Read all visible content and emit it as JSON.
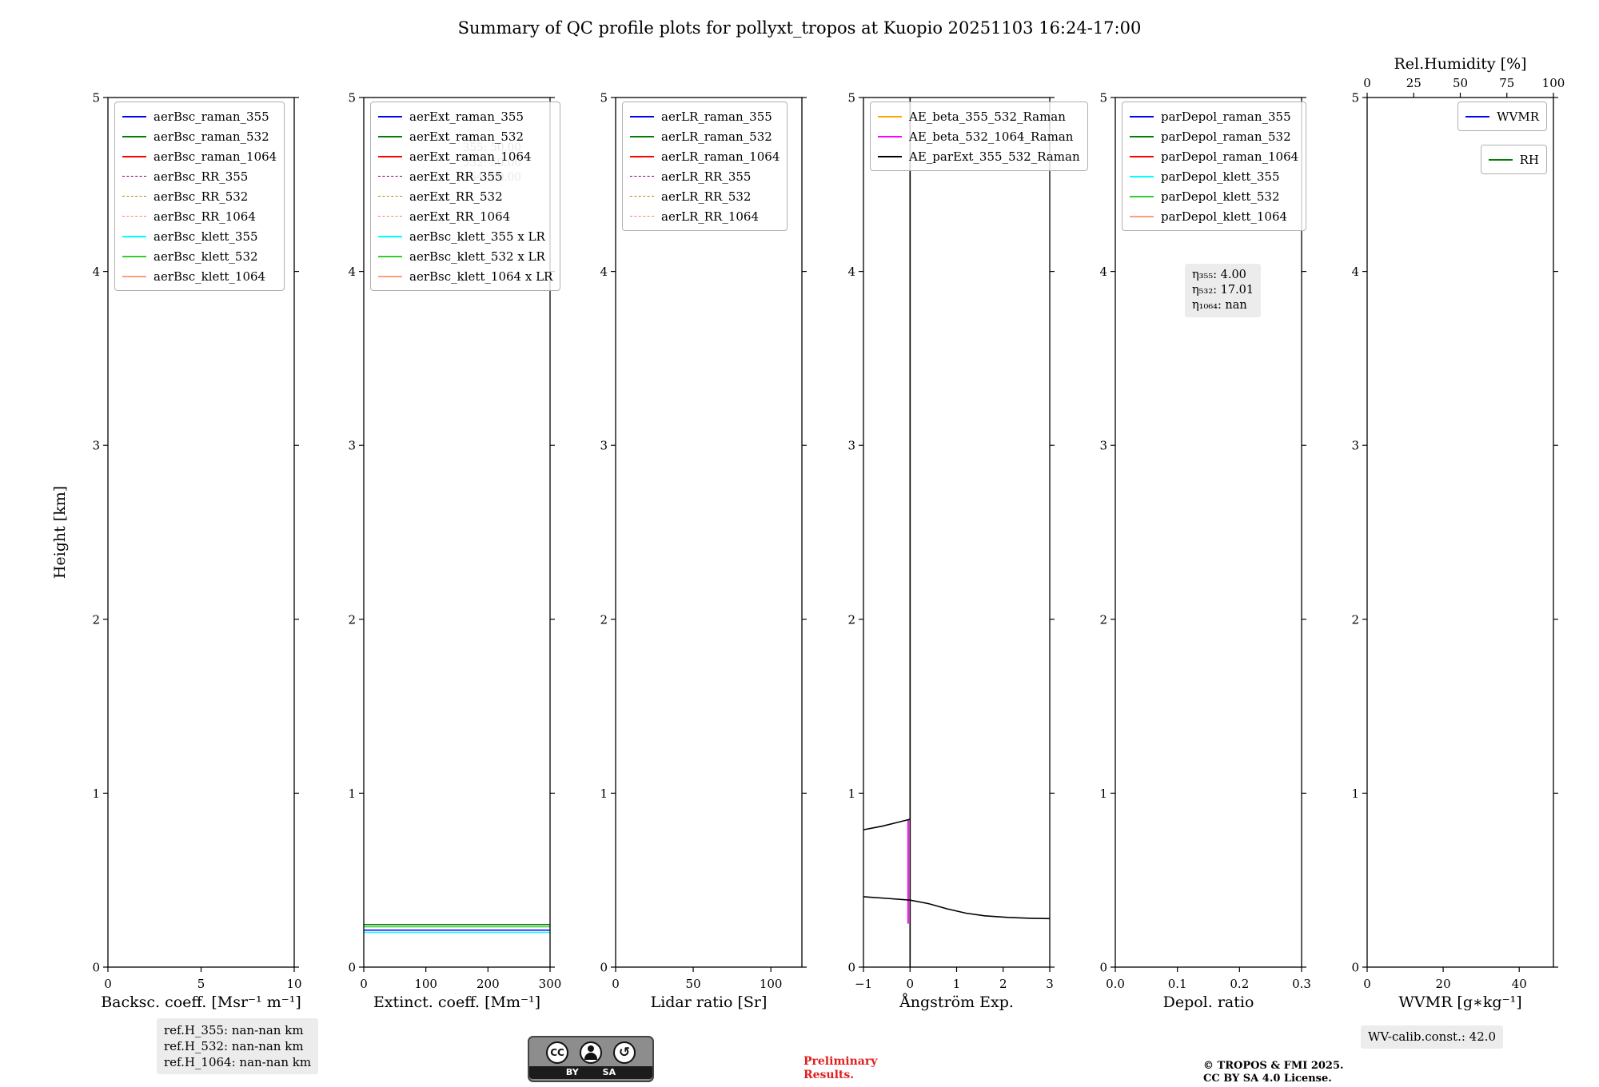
{
  "title": "Summary of QC profile plots for pollyxt_tropos at Kuopio 20251103 16:24-17:00",
  "ylabel": "Height [km]",
  "chart_data": [
    {
      "type": "line",
      "xlabel": "Backsc. coeff. [Msr⁻¹ m⁻¹]",
      "xlim": [
        0,
        10
      ],
      "xticks": [
        [
          0,
          "0"
        ],
        [
          5,
          "5"
        ],
        [
          10,
          "10"
        ]
      ],
      "ylim": [
        0,
        5
      ],
      "yticks": [
        [
          0,
          "0"
        ],
        [
          1,
          "1"
        ],
        [
          2,
          "2"
        ],
        [
          3,
          "3"
        ],
        [
          4,
          "4"
        ],
        [
          5,
          "5"
        ]
      ],
      "grid": false,
      "legends": [
        {
          "pos": "top-left",
          "entries": [
            {
              "label": "aerBsc_raman_355",
              "color": "#0000ff",
              "dash": false
            },
            {
              "label": "aerBsc_raman_532",
              "color": "#008000",
              "dash": false
            },
            {
              "label": "aerBsc_raman_1064",
              "color": "#ff0000",
              "dash": false
            },
            {
              "label": "aerBsc_RR_355",
              "color": "#800080",
              "dash": true
            },
            {
              "label": "aerBsc_RR_532",
              "color": "#b8860b",
              "dash": true
            },
            {
              "label": "aerBsc_RR_1064",
              "color": "#fa8072",
              "dash": true
            },
            {
              "label": "aerBsc_klett_355",
              "color": "#00ffff",
              "dash": false
            },
            {
              "label": "aerBsc_klett_532",
              "color": "#32cd32",
              "dash": false
            },
            {
              "label": "aerBsc_klett_1064",
              "color": "#ffa07a",
              "dash": false
            }
          ]
        }
      ],
      "series": []
    },
    {
      "type": "line",
      "xlabel": "Extinct. coeff. [Mm⁻¹]",
      "xlim": [
        0,
        300
      ],
      "xticks": [
        [
          0,
          "0"
        ],
        [
          100,
          "100"
        ],
        [
          200,
          "200"
        ],
        [
          300,
          "300"
        ]
      ],
      "ylim": [
        0,
        5
      ],
      "yticks": [
        [
          0,
          "0"
        ],
        [
          1,
          "1"
        ],
        [
          2,
          "2"
        ],
        [
          3,
          "3"
        ],
        [
          4,
          "4"
        ],
        [
          5,
          "5"
        ]
      ],
      "grid": false,
      "faint_text": [
        "355: 50.00",
        "532: 50.00",
        "1064: 50.00"
      ],
      "legends": [
        {
          "pos": "top-left",
          "entries": [
            {
              "label": "aerExt_raman_355",
              "color": "#0000ff",
              "dash": false
            },
            {
              "label": "aerExt_raman_532",
              "color": "#008000",
              "dash": false
            },
            {
              "label": "aerExt_raman_1064",
              "color": "#ff0000",
              "dash": false
            },
            {
              "label": "aerExt_RR_355",
              "color": "#800080",
              "dash": true
            },
            {
              "label": "aerExt_RR_532",
              "color": "#b8860b",
              "dash": true
            },
            {
              "label": "aerExt_RR_1064",
              "color": "#fa8072",
              "dash": true
            },
            {
              "label": "aerBsc_klett_355 x LR",
              "color": "#00ffff",
              "dash": false
            },
            {
              "label": "aerBsc_klett_532 x LR",
              "color": "#32cd32",
              "dash": false
            },
            {
              "label": "aerBsc_klett_1064 x LR",
              "color": "#ffa07a",
              "dash": false
            }
          ]
        }
      ],
      "series": [
        {
          "name": "aerBsc_klett_355 x LR",
          "color": "#00ffff",
          "width": 1.5,
          "segments": [
            [
              [
                0,
                0.2
              ],
              [
                300,
                0.2
              ]
            ]
          ]
        },
        {
          "name": "aerExt_raman_355",
          "color": "#0000ff",
          "width": 1.5,
          "segments": [
            [
              [
                0,
                0.213
              ],
              [
                300,
                0.213
              ]
            ]
          ]
        },
        {
          "name": "aerBsc_klett_532 x LR",
          "color": "#32cd32",
          "width": 1.5,
          "segments": [
            [
              [
                0,
                0.232
              ],
              [
                300,
                0.232
              ]
            ]
          ]
        },
        {
          "name": "aerExt_raman_532",
          "color": "#008000",
          "width": 1.5,
          "segments": [
            [
              [
                0,
                0.245
              ],
              [
                300,
                0.245
              ]
            ]
          ]
        }
      ]
    },
    {
      "type": "line",
      "xlabel": "Lidar ratio [Sr]",
      "xlim": [
        0,
        120
      ],
      "xticks": [
        [
          0,
          "0"
        ],
        [
          50,
          "50"
        ],
        [
          100,
          "100"
        ]
      ],
      "ylim": [
        0,
        5
      ],
      "yticks": [
        [
          0,
          "0"
        ],
        [
          1,
          "1"
        ],
        [
          2,
          "2"
        ],
        [
          3,
          "3"
        ],
        [
          4,
          "4"
        ],
        [
          5,
          "5"
        ]
      ],
      "grid": false,
      "legends": [
        {
          "pos": "top-left",
          "entries": [
            {
              "label": "aerLR_raman_355",
              "color": "#0000ff",
              "dash": false
            },
            {
              "label": "aerLR_raman_532",
              "color": "#008000",
              "dash": false
            },
            {
              "label": "aerLR_raman_1064",
              "color": "#ff0000",
              "dash": false
            },
            {
              "label": "aerLR_RR_355",
              "color": "#800080",
              "dash": true
            },
            {
              "label": "aerLR_RR_532",
              "color": "#b8860b",
              "dash": true
            },
            {
              "label": "aerLR_RR_1064",
              "color": "#fa8072",
              "dash": true
            }
          ]
        }
      ],
      "series": []
    },
    {
      "type": "line",
      "xlabel": "Ångström Exp.",
      "xlim": [
        -1,
        3
      ],
      "xticks": [
        [
          -1,
          "−1"
        ],
        [
          0,
          "0"
        ],
        [
          1,
          "1"
        ],
        [
          2,
          "2"
        ],
        [
          3,
          "3"
        ]
      ],
      "ylim": [
        0,
        5
      ],
      "yticks": [
        [
          0,
          "0"
        ],
        [
          1,
          "1"
        ],
        [
          2,
          "2"
        ],
        [
          3,
          "3"
        ],
        [
          4,
          "4"
        ],
        [
          5,
          "5"
        ]
      ],
      "grid": false,
      "legends": [
        {
          "pos": "top-left",
          "entries": [
            {
              "label": "AE_beta_355_532_Raman",
              "color": "#ffa500",
              "dash": false
            },
            {
              "label": "AE_beta_532_1064_Raman",
              "color": "#ff00ff",
              "dash": false
            },
            {
              "label": "AE_parExt_355_532_Raman",
              "color": "#000000",
              "dash": false
            }
          ]
        }
      ],
      "series": [
        {
          "name": "AE_beta_355_532_Raman",
          "color": "#ffa500",
          "width": 1.6,
          "segments": [
            [
              [
                0,
                0.05
              ],
              [
                0,
                5
              ]
            ]
          ]
        },
        {
          "name": "AE_beta_532_1064_Raman",
          "color": "#ff00ff",
          "width": 2,
          "segments": [
            [
              [
                -0.04,
                0.25
              ],
              [
                -0.04,
                0.85
              ]
            ]
          ]
        },
        {
          "name": "AE_parExt_355_532_Raman",
          "color": "#000000",
          "width": 1.6,
          "segments": [
            [
              [
                0,
                0
              ],
              [
                0,
                5
              ]
            ],
            [
              [
                -1,
                0.79
              ],
              [
                -0.6,
                0.81
              ],
              [
                -0.3,
                0.83
              ],
              [
                0,
                0.85
              ]
            ],
            [
              [
                -1,
                0.405
              ],
              [
                -0.5,
                0.395
              ],
              [
                0,
                0.385
              ],
              [
                0.4,
                0.365
              ],
              [
                0.8,
                0.335
              ],
              [
                1.2,
                0.31
              ],
              [
                1.6,
                0.295
              ],
              [
                2.1,
                0.286
              ],
              [
                2.6,
                0.281
              ],
              [
                3,
                0.279
              ]
            ]
          ]
        }
      ]
    },
    {
      "type": "line",
      "xlabel": "Depol. ratio",
      "xlim": [
        0,
        0.3
      ],
      "xticks": [
        [
          0,
          "0.0"
        ],
        [
          0.1,
          "0.1"
        ],
        [
          0.2,
          "0.2"
        ],
        [
          0.3,
          "0.3"
        ]
      ],
      "ylim": [
        0,
        5
      ],
      "yticks": [
        [
          0,
          "0"
        ],
        [
          1,
          "1"
        ],
        [
          2,
          "2"
        ],
        [
          3,
          "3"
        ],
        [
          4,
          "4"
        ],
        [
          5,
          "5"
        ]
      ],
      "grid": false,
      "eta_lines": [
        "η₃₅₅: 4.00",
        "η₅₃₂: 17.01",
        "η₁₀₆₄: nan"
      ],
      "legends": [
        {
          "pos": "top-left",
          "entries": [
            {
              "label": "parDepol_raman_355",
              "color": "#0000ff",
              "dash": false
            },
            {
              "label": "parDepol_raman_532",
              "color": "#008000",
              "dash": false
            },
            {
              "label": "parDepol_raman_1064",
              "color": "#ff0000",
              "dash": false
            },
            {
              "label": "parDepol_klett_355",
              "color": "#00ffff",
              "dash": false
            },
            {
              "label": "parDepol_klett_532",
              "color": "#32cd32",
              "dash": false
            },
            {
              "label": "parDepol_klett_1064",
              "color": "#ffa07a",
              "dash": false
            }
          ]
        }
      ],
      "series": []
    },
    {
      "type": "line",
      "xlabel": "WVMR [g∗kg⁻¹]",
      "xlim": [
        0,
        49
      ],
      "xticks": [
        [
          0,
          "0"
        ],
        [
          20,
          "20"
        ],
        [
          40,
          "40"
        ]
      ],
      "ylim": [
        0,
        5
      ],
      "yticks": [
        [
          0,
          "0"
        ],
        [
          1,
          "1"
        ],
        [
          2,
          "2"
        ],
        [
          3,
          "3"
        ],
        [
          4,
          "4"
        ],
        [
          5,
          "5"
        ]
      ],
      "grid": false,
      "top_axis": {
        "label": "Rel.Humidity [%]",
        "xlim": [
          0,
          100
        ],
        "xticks": [
          [
            0,
            "0"
          ],
          [
            25,
            "25"
          ],
          [
            50,
            "50"
          ],
          [
            75,
            "75"
          ],
          [
            100,
            "100"
          ]
        ]
      },
      "legends": [
        {
          "pos": "top-right",
          "entries": [
            {
              "label": "WVMR",
              "color": "#0000ff",
              "dash": false
            }
          ]
        },
        {
          "pos": "top-right",
          "entries": [
            {
              "label": "RH",
              "color": "#008000",
              "dash": false
            }
          ]
        }
      ],
      "series": []
    }
  ],
  "footers": {
    "ref_lines": [
      "ref.H_355: nan-nan km",
      "ref.H_532: nan-nan km",
      "ref.H_1064: nan-nan km"
    ],
    "preliminary": "Preliminary\nResults.",
    "copyright": "© TROPOS & FMI 2025.\nCC BY SA 4.0 License.",
    "wv_calib": "WV-calib.const.: 42.0",
    "cc_badge": {
      "cc": "CC",
      "by": "BY",
      "sa": "SA"
    }
  }
}
